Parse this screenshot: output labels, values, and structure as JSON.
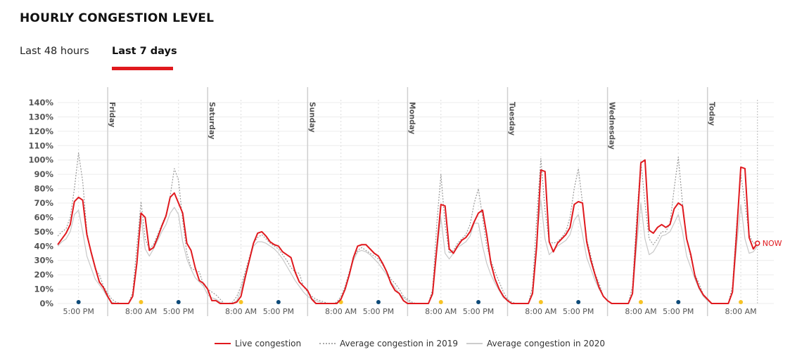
{
  "header": {
    "title": "HOURLY CONGESTION LEVEL"
  },
  "tabs": [
    {
      "label": "Last 48 hours",
      "active": false
    },
    {
      "label": "Last 7 days",
      "active": true
    }
  ],
  "colors": {
    "live": "#e0191e",
    "avg2019": "#999999",
    "avg2020": "#c8c8c8",
    "morning_marker": "#f6c325",
    "evening_marker": "#0d4a78",
    "accent": "#e0191e"
  },
  "chart_data": {
    "type": "line",
    "title": "",
    "xlabel": "",
    "ylabel": "",
    "ylim": [
      0,
      140
    ],
    "y_unit": "%",
    "y_ticks": [
      "0%",
      "10%",
      "20%",
      "30%",
      "40%",
      "50%",
      "60%",
      "70%",
      "80%",
      "90%",
      "100%",
      "110%",
      "120%",
      "130%",
      "140%"
    ],
    "x_interval": "hourly",
    "day_labels": [
      "Friday",
      "Saturday",
      "Sunday",
      "Monday",
      "Tuesday",
      "Wednesday",
      "Today"
    ],
    "x_ticks": [
      {
        "day_index": 0,
        "hour": 17,
        "label": "5:00 PM",
        "marker": "evening"
      },
      {
        "day_index": 1,
        "hour": 8,
        "label": "8:00 AM",
        "marker": "morning"
      },
      {
        "day_index": 1,
        "hour": 17,
        "label": "5:00 PM",
        "marker": "evening"
      },
      {
        "day_index": 2,
        "hour": 8,
        "label": "8:00 AM",
        "marker": "morning"
      },
      {
        "day_index": 2,
        "hour": 17,
        "label": "5:00 PM",
        "marker": "evening"
      },
      {
        "day_index": 3,
        "hour": 8,
        "label": "8:00 AM",
        "marker": "morning"
      },
      {
        "day_index": 3,
        "hour": 17,
        "label": "5:00 PM",
        "marker": "evening"
      },
      {
        "day_index": 4,
        "hour": 8,
        "label": "8:00 AM",
        "marker": "morning"
      },
      {
        "day_index": 4,
        "hour": 17,
        "label": "5:00 PM",
        "marker": "evening"
      },
      {
        "day_index": 5,
        "hour": 8,
        "label": "8:00 AM",
        "marker": "morning"
      },
      {
        "day_index": 5,
        "hour": 17,
        "label": "5:00 PM",
        "marker": "evening"
      },
      {
        "day_index": 6,
        "hour": 8,
        "label": "8:00 AM",
        "marker": "morning"
      },
      {
        "day_index": 6,
        "hour": 17,
        "label": "5:00 PM",
        "marker": "evening"
      },
      {
        "day_index": 7,
        "hour": 8,
        "label": "8:00 AM",
        "marker": "morning"
      }
    ],
    "now_label": "NOW",
    "grid": true,
    "legend_position": "bottom",
    "series": [
      {
        "name": "Live congestion",
        "key": "live",
        "style": "solid",
        "values": [
          [
            41,
            45,
            49,
            55,
            71,
            74,
            72,
            48,
            36,
            25,
            15,
            11
          ],
          [
            5,
            0,
            0,
            0,
            0,
            0,
            5,
            28,
            63,
            60,
            37,
            39,
            46,
            54,
            61,
            74,
            77,
            70,
            63,
            42,
            37,
            25,
            16,
            14
          ],
          [
            10,
            2,
            2,
            0,
            0,
            0,
            0,
            1,
            5,
            18,
            30,
            42,
            49,
            50,
            47,
            43,
            41,
            40,
            36,
            34,
            32,
            22,
            15,
            12
          ],
          [
            9,
            3,
            0,
            0,
            0,
            0,
            0,
            0,
            3,
            10,
            20,
            32,
            40,
            41,
            41,
            38,
            35,
            33,
            28,
            22,
            14,
            9,
            7,
            2
          ],
          [
            0,
            0,
            0,
            0,
            0,
            0,
            7,
            38,
            69,
            68,
            38,
            35,
            40,
            44,
            46,
            50,
            57,
            63,
            65,
            48,
            28,
            17,
            10,
            5
          ],
          [
            2,
            0,
            0,
            0,
            0,
            0,
            7,
            40,
            93,
            92,
            43,
            36,
            42,
            45,
            48,
            53,
            69,
            71,
            70,
            43,
            30,
            20,
            11,
            5
          ],
          [
            2,
            0,
            0,
            0,
            0,
            0,
            7,
            50,
            98,
            100,
            51,
            49,
            53,
            55,
            53,
            55,
            66,
            70,
            68,
            45,
            34,
            19,
            11,
            6
          ],
          [
            3,
            0,
            0,
            0,
            0,
            0,
            8,
            49,
            95,
            94,
            46,
            38,
            42
          ]
        ]
      },
      {
        "name": "Average congestion in 2019",
        "key": "avg2019",
        "style": "dotted",
        "values": [
          [
            47,
            50,
            52,
            60,
            80,
            105,
            85,
            50,
            35,
            24,
            20,
            12
          ],
          [
            7,
            3,
            1,
            0,
            0,
            0,
            8,
            40,
            71,
            45,
            38,
            41,
            48,
            55,
            62,
            75,
            94,
            86,
            58,
            35,
            25,
            23,
            22,
            13
          ],
          [
            10,
            8,
            6,
            3,
            0,
            0,
            1,
            5,
            12,
            22,
            32,
            42,
            46,
            48,
            45,
            42,
            40,
            38,
            34,
            30,
            25,
            22,
            21,
            12
          ],
          [
            8,
            5,
            3,
            2,
            1,
            0,
            0,
            1,
            5,
            12,
            22,
            32,
            37,
            39,
            37,
            35,
            33,
            31,
            27,
            22,
            17,
            14,
            10,
            5
          ],
          [
            3,
            1,
            0,
            0,
            0,
            0,
            10,
            55,
            90,
            55,
            35,
            37,
            42,
            45,
            48,
            55,
            70,
            80,
            60,
            40,
            30,
            22,
            15,
            8
          ],
          [
            3,
            1,
            0,
            0,
            0,
            0,
            12,
            60,
            101,
            65,
            43,
            42,
            43,
            46,
            50,
            60,
            80,
            94,
            70,
            45,
            33,
            21,
            14,
            5
          ],
          [
            2,
            0,
            0,
            0,
            0,
            0,
            12,
            60,
            99,
            70,
            45,
            41,
            45,
            50,
            50,
            56,
            80,
            102,
            70,
            45,
            32,
            20,
            14,
            6
          ],
          [
            3,
            0,
            0,
            0,
            0,
            0,
            12,
            55,
            90,
            70,
            48,
            42,
            43
          ]
        ]
      },
      {
        "name": "Average congestion in 2020",
        "key": "avg2020",
        "style": "solid",
        "values": [
          [
            40,
            43,
            45,
            50,
            62,
            65,
            50,
            33,
            25,
            17,
            13,
            9
          ],
          [
            4,
            1,
            0,
            0,
            0,
            0,
            5,
            30,
            60,
            38,
            33,
            38,
            44,
            50,
            55,
            63,
            67,
            62,
            43,
            31,
            24,
            18,
            15,
            12
          ],
          [
            6,
            4,
            3,
            1,
            0,
            0,
            0,
            2,
            9,
            20,
            30,
            40,
            43,
            43,
            42,
            40,
            38,
            35,
            31,
            26,
            21,
            16,
            12,
            8
          ],
          [
            5,
            3,
            2,
            1,
            0,
            0,
            0,
            0,
            3,
            10,
            21,
            30,
            36,
            37,
            36,
            34,
            31,
            28,
            24,
            20,
            15,
            11,
            7,
            4
          ],
          [
            2,
            0,
            0,
            0,
            0,
            0,
            6,
            35,
            60,
            35,
            31,
            35,
            39,
            41,
            43,
            47,
            56,
            56,
            40,
            28,
            20,
            14,
            9,
            4
          ],
          [
            2,
            0,
            0,
            0,
            0,
            0,
            8,
            45,
            72,
            45,
            34,
            37,
            40,
            42,
            44,
            48,
            58,
            62,
            48,
            32,
            24,
            16,
            10,
            5
          ],
          [
            2,
            0,
            0,
            0,
            0,
            0,
            7,
            40,
            70,
            45,
            34,
            36,
            41,
            47,
            48,
            50,
            56,
            62,
            50,
            33,
            25,
            17,
            10,
            5
          ],
          [
            2,
            0,
            0,
            0,
            0,
            0,
            8,
            40,
            69,
            45,
            35,
            36,
            40
          ]
        ]
      }
    ]
  }
}
